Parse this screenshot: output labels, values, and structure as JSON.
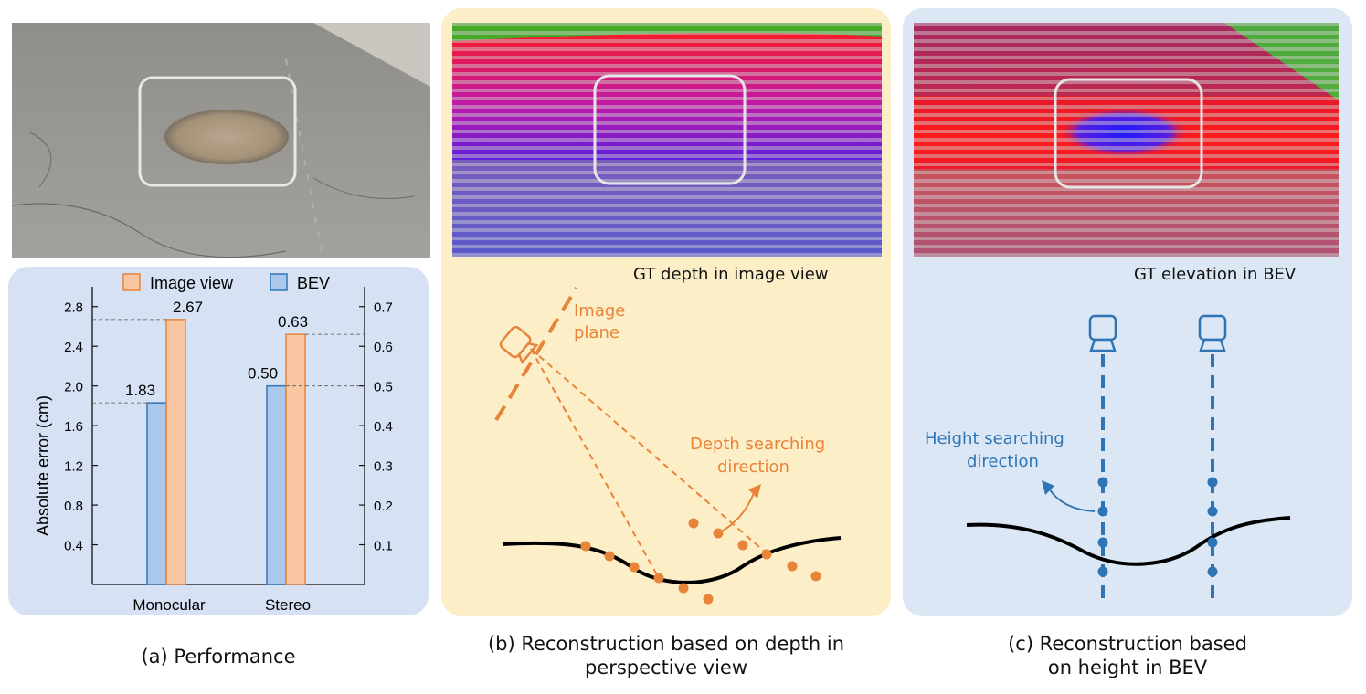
{
  "panel_a": {
    "caption": "(a) Performance",
    "chart_data": {
      "type": "bar",
      "categories": [
        "Monocular",
        "Stereo"
      ],
      "series": [
        {
          "name": "BEV",
          "values": [
            1.83,
            0.5
          ],
          "color": "#a9c8ec",
          "axis": "left/right"
        },
        {
          "name": "Image view",
          "values": [
            2.67,
            0.63
          ],
          "color": "#f8c6a0"
        }
      ],
      "data_labels": [
        "1.83",
        "2.67",
        "0.50",
        "0.63"
      ],
      "ylabel": "Absolute error (cm)",
      "left_ticks": [
        "0.4",
        "0.8",
        "1.2",
        "1.6",
        "2.0",
        "2.4",
        "2.8"
      ],
      "right_ticks": [
        "0.1",
        "0.2",
        "0.3",
        "0.4",
        "0.5",
        "0.6",
        "0.7"
      ],
      "left_ylim": [
        0,
        3.0
      ],
      "right_ylim": [
        0,
        0.75
      ],
      "note": "Monocular bars use the left axis; Stereo bars use the right axis",
      "legend_position": "top"
    }
  },
  "panel_b": {
    "image_caption": "GT depth in image view",
    "annotation_plane": "Image\nplane",
    "annotation_plane_line1": "Image",
    "annotation_plane_line2": "plane",
    "annotation_search_line1": "Depth searching",
    "annotation_search_line2": "direction",
    "caption_line1": "(b) Reconstruction based on depth in",
    "caption_line2": "perspective view",
    "accent": "#e8833a"
  },
  "panel_c": {
    "image_caption": "GT elevation in BEV",
    "annotation_search_line1": "Height searching",
    "annotation_search_line2": "direction",
    "caption_line1": "(c) Reconstruction based",
    "caption_line2": "on height in BEV",
    "accent": "#2f75b5"
  }
}
